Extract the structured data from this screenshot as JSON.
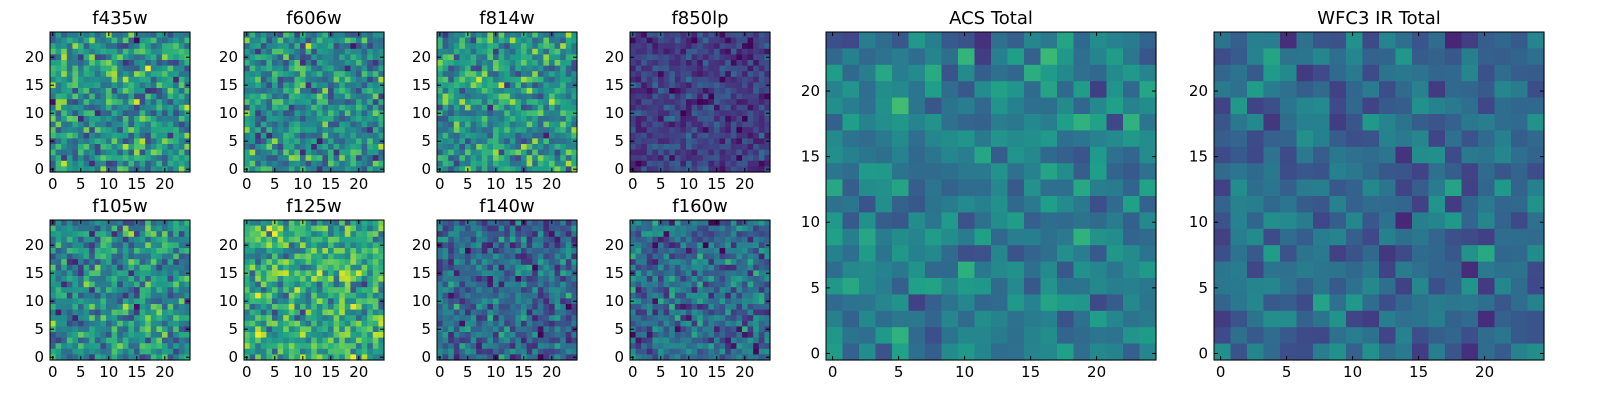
{
  "figure": {
    "colormap": "viridis",
    "background": "#ffffff"
  },
  "chart_data": [
    {
      "type": "heatmap",
      "title": "f435w",
      "grid_size": 25,
      "xlim": [
        0,
        24
      ],
      "ylim": [
        0,
        24
      ],
      "xticks": [
        0,
        5,
        10,
        15,
        20
      ],
      "yticks": [
        0,
        5,
        10,
        15,
        20
      ],
      "intensity": 0.5,
      "spread": 0.22,
      "seed": 11
    },
    {
      "type": "heatmap",
      "title": "f606w",
      "grid_size": 25,
      "xlim": [
        0,
        24
      ],
      "ylim": [
        0,
        24
      ],
      "xticks": [
        0,
        5,
        10,
        15,
        20
      ],
      "yticks": [
        0,
        5,
        10,
        15,
        20
      ],
      "intensity": 0.48,
      "spread": 0.2,
      "seed": 23
    },
    {
      "type": "heatmap",
      "title": "f814w",
      "grid_size": 25,
      "xlim": [
        0,
        24
      ],
      "ylim": [
        0,
        24
      ],
      "xticks": [
        0,
        5,
        10,
        15,
        20
      ],
      "yticks": [
        0,
        5,
        10,
        15,
        20
      ],
      "intensity": 0.52,
      "spread": 0.2,
      "seed": 37
    },
    {
      "type": "heatmap",
      "title": "f850lp",
      "grid_size": 25,
      "xlim": [
        0,
        24
      ],
      "ylim": [
        0,
        24
      ],
      "xticks": [
        0,
        5,
        10,
        15,
        20
      ],
      "yticks": [
        0,
        5,
        10,
        15,
        20
      ],
      "intensity": 0.18,
      "spread": 0.1,
      "seed": 41
    },
    {
      "type": "heatmap",
      "title": "f105w",
      "grid_size": 25,
      "xlim": [
        0,
        24
      ],
      "ylim": [
        0,
        24
      ],
      "xticks": [
        0,
        5,
        10,
        15,
        20
      ],
      "yticks": [
        0,
        5,
        10,
        15,
        20
      ],
      "intensity": 0.48,
      "spread": 0.2,
      "seed": 53
    },
    {
      "type": "heatmap",
      "title": "f125w",
      "grid_size": 25,
      "xlim": [
        0,
        24
      ],
      "ylim": [
        0,
        24
      ],
      "xticks": [
        0,
        5,
        10,
        15,
        20
      ],
      "yticks": [
        0,
        5,
        10,
        15,
        20
      ],
      "intensity": 0.62,
      "spread": 0.2,
      "seed": 67
    },
    {
      "type": "heatmap",
      "title": "f140w",
      "grid_size": 25,
      "xlim": [
        0,
        24
      ],
      "ylim": [
        0,
        24
      ],
      "xticks": [
        0,
        5,
        10,
        15,
        20
      ],
      "yticks": [
        0,
        5,
        10,
        15,
        20
      ],
      "intensity": 0.33,
      "spread": 0.17,
      "seed": 79
    },
    {
      "type": "heatmap",
      "title": "f160w",
      "grid_size": 25,
      "xlim": [
        0,
        24
      ],
      "ylim": [
        0,
        24
      ],
      "xticks": [
        0,
        5,
        10,
        15,
        20
      ],
      "yticks": [
        0,
        5,
        10,
        15,
        20
      ],
      "intensity": 0.35,
      "spread": 0.17,
      "seed": 83
    },
    {
      "type": "heatmap",
      "title": "ACS Total",
      "grid_size": 20,
      "xlim": [
        0,
        24
      ],
      "ylim": [
        0,
        24
      ],
      "xticks": [
        0,
        5,
        10,
        15,
        20
      ],
      "yticks": [
        0,
        5,
        10,
        15,
        20
      ],
      "intensity": 0.42,
      "spread": 0.12,
      "seed": 97
    },
    {
      "type": "heatmap",
      "title": "WFC3 IR Total",
      "grid_size": 20,
      "xlim": [
        0,
        24
      ],
      "ylim": [
        0,
        24
      ],
      "xticks": [
        0,
        5,
        10,
        15,
        20
      ],
      "yticks": [
        0,
        5,
        10,
        15,
        20
      ],
      "intensity": 0.35,
      "spread": 0.12,
      "seed": 101
    }
  ]
}
